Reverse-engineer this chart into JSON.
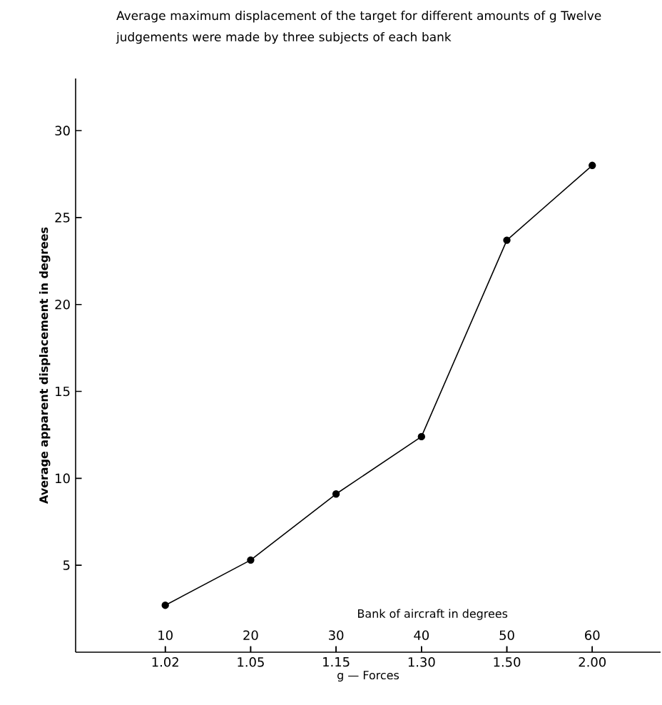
{
  "chart_data": {
    "type": "line",
    "title": "Average maximum displacement of the target for different amounts of g  Twelve judgements were made by three subjects of each bank",
    "xlabel": "g — Forces",
    "ylabel": "Average apparent displacement in degrees",
    "x2label": "Bank of aircraft in degrees",
    "categories": [
      "1.02",
      "1.05",
      "1.15",
      "1.30",
      "1.50",
      "2.00"
    ],
    "x2lim": [
      -0.5,
      68
    ],
    "x2ticks": [
      10,
      20,
      30,
      40,
      50,
      60
    ],
    "ylim": [
      0,
      33
    ],
    "yticks": [
      5,
      10,
      15,
      20,
      25,
      30
    ],
    "series": [
      {
        "color": "#000000",
        "values": [
          2.7,
          5.3,
          9.1,
          12.4,
          23.7,
          28.0
        ]
      }
    ],
    "marker": "circle",
    "line_style": "solid",
    "grid": false
  }
}
